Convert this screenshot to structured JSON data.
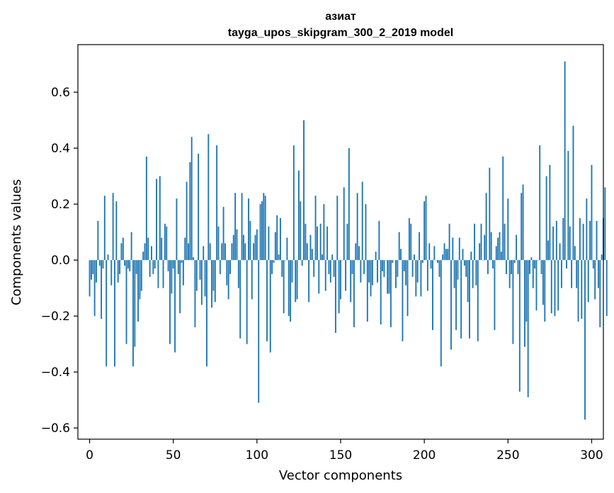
{
  "chart_data": {
    "type": "bar",
    "title": "азиат",
    "subtitle": "tayga_upos_skipgram_300_2_2019 model",
    "xlabel": "Vector components",
    "ylabel": "Components values",
    "xlim": [
      -7,
      307
    ],
    "ylim": [
      -0.64,
      0.77
    ],
    "xticks": [
      0,
      50,
      100,
      150,
      200,
      250,
      300
    ],
    "yticks": [
      -0.6,
      -0.4,
      -0.2,
      0.0,
      0.2,
      0.4,
      0.6
    ],
    "ytick_labels": [
      "−0.6",
      "−0.4",
      "−0.2",
      "0.0",
      "0.2",
      "0.4",
      "0.6"
    ],
    "xtick_labels": [
      "0",
      "50",
      "100",
      "150",
      "200",
      "250",
      "300"
    ],
    "bar_color": "#1f77b4",
    "values": [
      -0.13,
      -0.07,
      -0.05,
      -0.2,
      -0.08,
      0.14,
      -0.02,
      -0.21,
      -0.03,
      0.23,
      -0.38,
      0.02,
      0.0,
      -0.09,
      0.24,
      -0.38,
      0.21,
      -0.08,
      -0.05,
      0.06,
      0.08,
      -0.02,
      -0.3,
      -0.03,
      -0.04,
      0.1,
      -0.38,
      -0.31,
      -0.05,
      -0.22,
      -0.14,
      -0.11,
      0.03,
      0.06,
      0.37,
      0.08,
      -0.06,
      0.05,
      -0.05,
      -0.03,
      0.29,
      -0.1,
      0.3,
      0.08,
      -0.1,
      0.13,
      0.12,
      -0.04,
      -0.3,
      -0.12,
      -0.03,
      -0.33,
      0.22,
      -0.05,
      -0.19,
      -0.01,
      -0.09,
      0.08,
      0.28,
      0.06,
      0.35,
      0.44,
      0.01,
      -0.24,
      -0.11,
      0.38,
      -0.07,
      -0.16,
      0.05,
      -0.13,
      -0.38,
      0.45,
      0.06,
      -0.17,
      -0.11,
      -0.15,
      0.41,
      0.12,
      -0.05,
      0.06,
      0.19,
      0.06,
      -0.09,
      -0.14,
      -0.05,
      0.06,
      0.09,
      0.24,
      0.11,
      -0.1,
      -0.28,
      0.24,
      0.09,
      0.06,
      -0.3,
      0.22,
      0.14,
      -0.14,
      0.06,
      0.09,
      0.11,
      -0.51,
      0.2,
      0.21,
      0.24,
      0.23,
      -0.29,
      0.12,
      -0.33,
      -0.05,
      -0.01,
      0.1,
      0.16,
      0.02,
      0.15,
      -0.06,
      -0.19,
      0.0,
      0.08,
      -0.2,
      -0.22,
      -0.08,
      0.41,
      -0.15,
      -0.14,
      0.32,
      0.21,
      -0.02,
      0.5,
      0.13,
      0.06,
      -0.15,
      0.09,
      0.04,
      -0.06,
      0.23,
      0.12,
      -0.12,
      0.13,
      0.02,
      0.2,
      -0.11,
      0.12,
      -0.05,
      -0.08,
      0.02,
      -0.06,
      -0.26,
      0.23,
      -0.19,
      -0.14,
      0.0,
      0.26,
      -0.11,
      0.13,
      0.4,
      -0.15,
      -0.05,
      -0.24,
      0.06,
      0.24,
      0.05,
      -0.08,
      0.28,
      -0.05,
      0.2,
      -0.22,
      -0.08,
      -0.13,
      -0.09,
      0.0,
      0.03,
      -0.08,
      0.14,
      -0.23,
      -0.04,
      -0.06,
      0.0,
      -0.12,
      -0.12,
      -0.24,
      -0.01,
      0.0,
      -0.1,
      -0.06,
      0.1,
      0.04,
      -0.29,
      -0.04,
      -0.09,
      -0.2,
      0.15,
      0.13,
      -0.06,
      0.02,
      -0.13,
      -0.08,
      0.1,
      -0.13,
      -0.01,
      0.21,
      0.23,
      -0.11,
      0.06,
      -0.03,
      -0.25,
      0.05,
      0.0,
      -0.01,
      -0.06,
      -0.38,
      0.02,
      0.06,
      0.04,
      0.04,
      0.13,
      -0.32,
      0.08,
      -0.1,
      -0.25,
      -0.07,
      0.08,
      -0.28,
      0.04,
      -0.02,
      -0.06,
      -0.15,
      -0.28,
      0.03,
      -0.1,
      0.13,
      -0.09,
      -0.29,
      0.06,
      0.13,
      0.0,
      0.09,
      0.24,
      -0.05,
      0.33,
      0.1,
      -0.03,
      -0.25,
      0.05,
      0.08,
      0.1,
      0.03,
      0.37,
      0.13,
      -0.05,
      0.22,
      -0.1,
      -0.05,
      -0.3,
      -0.01,
      0.09,
      -0.05,
      -0.47,
      0.24,
      0.27,
      -0.31,
      -0.22,
      -0.49,
      -0.05,
      0.01,
      -0.1,
      -0.03,
      -0.18,
      0.0,
      0.41,
      -0.05,
      -0.16,
      -0.22,
      0.3,
      0.07,
      0.34,
      -0.19,
      0.12,
      -0.2,
      0.14,
      -0.18,
      0.06,
      -0.1,
      0.15,
      0.71,
      -0.03,
      0.39,
      0.12,
      -0.1,
      0.48,
      0.05,
      -0.1,
      -0.22,
      0.15,
      -0.21,
      0.13,
      -0.57,
      0.22,
      -0.15,
      0.14,
      0.34,
      -0.03,
      -0.14,
      0.14,
      -0.1,
      -0.24,
      0.02,
      0.15,
      0.26,
      -0.2
    ]
  }
}
